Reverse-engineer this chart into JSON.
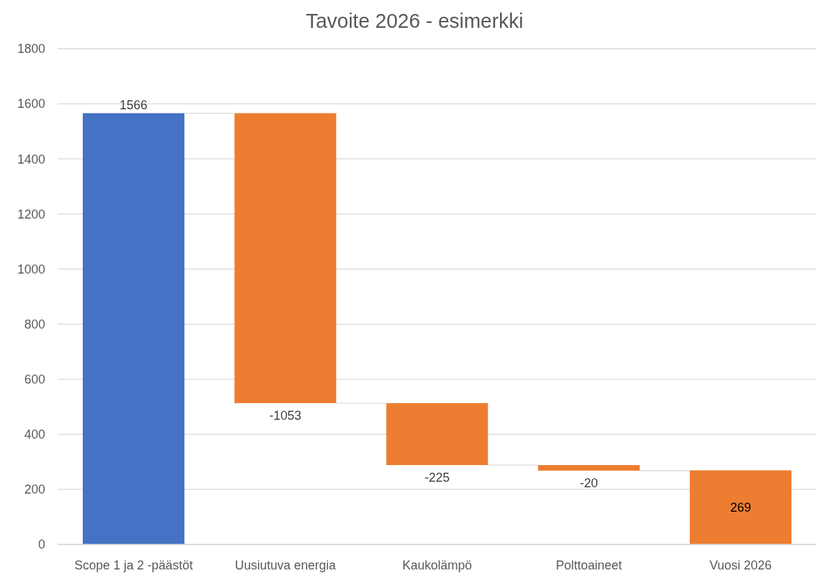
{
  "chart_data": {
    "type": "bar",
    "title": "Tavoite 2026 - esimerkki",
    "categories": [
      "Scope 1 ja 2 -päästöt",
      "Uusiutuva energia",
      "Kaukolämpö",
      "Polttoaineet",
      "Vuosi 2026"
    ],
    "values": [
      1566,
      -1053,
      -225,
      -20,
      269
    ],
    "base": [
      0,
      1566,
      513,
      288,
      0
    ],
    "colors": [
      "#4472c4",
      "#ed7d31",
      "#ed7d31",
      "#ed7d31",
      "#ed7d31"
    ],
    "ylim": [
      0,
      1800
    ],
    "yticks": [
      0,
      200,
      400,
      600,
      800,
      1000,
      1200,
      1400,
      1600,
      1800
    ],
    "grid": "y",
    "data_labels": true
  }
}
